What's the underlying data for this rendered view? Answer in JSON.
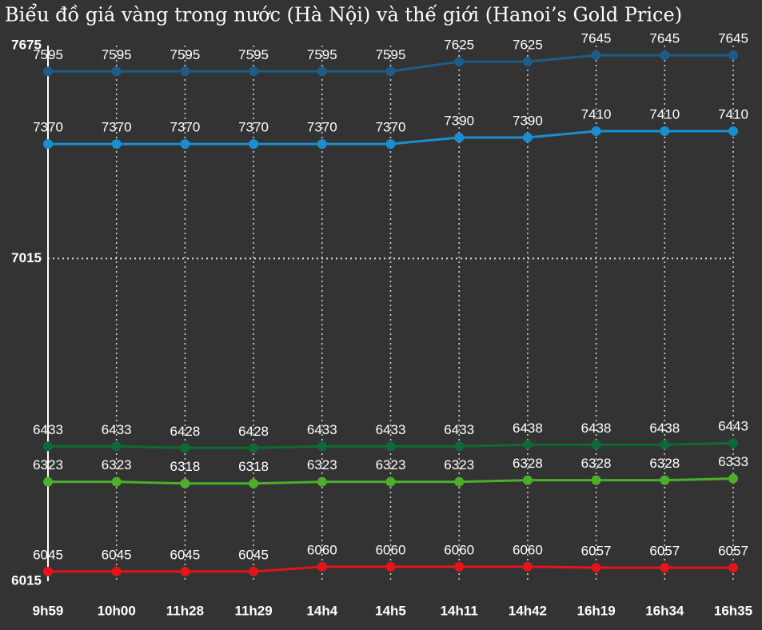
{
  "chart_data": {
    "type": "line",
    "title": "Biểu đồ giá vàng trong nước (Hà Nội) và thế giới (Hanoi’s Gold Price)",
    "categories": [
      "9h59",
      "10h00",
      "11h28",
      "11h29",
      "14h4",
      "14h5",
      "14h11",
      "14h42",
      "16h19",
      "16h34",
      "16h35"
    ],
    "series": [
      {
        "color": "#1d5c88",
        "values": [
          7595,
          7595,
          7595,
          7595,
          7595,
          7595,
          7625,
          7625,
          7645,
          7645,
          7645
        ]
      },
      {
        "color": "#1a8fd0",
        "values": [
          7370,
          7370,
          7370,
          7370,
          7370,
          7370,
          7390,
          7390,
          7410,
          7410,
          7410
        ]
      },
      {
        "color": "#0e6a34",
        "values": [
          6433,
          6433,
          6428,
          6428,
          6433,
          6433,
          6433,
          6438,
          6438,
          6438,
          6443
        ]
      },
      {
        "color": "#4caf2a",
        "values": [
          6323,
          6323,
          6318,
          6318,
          6323,
          6323,
          6323,
          6328,
          6328,
          6328,
          6333
        ]
      },
      {
        "color": "#e3141a",
        "values": [
          6045,
          6045,
          6045,
          6045,
          6060,
          6060,
          6060,
          6060,
          6057,
          6057,
          6057
        ]
      }
    ],
    "ylim": [
      6015,
      7675
    ],
    "yticks": [
      6015,
      7015,
      7675
    ],
    "grid": true
  }
}
